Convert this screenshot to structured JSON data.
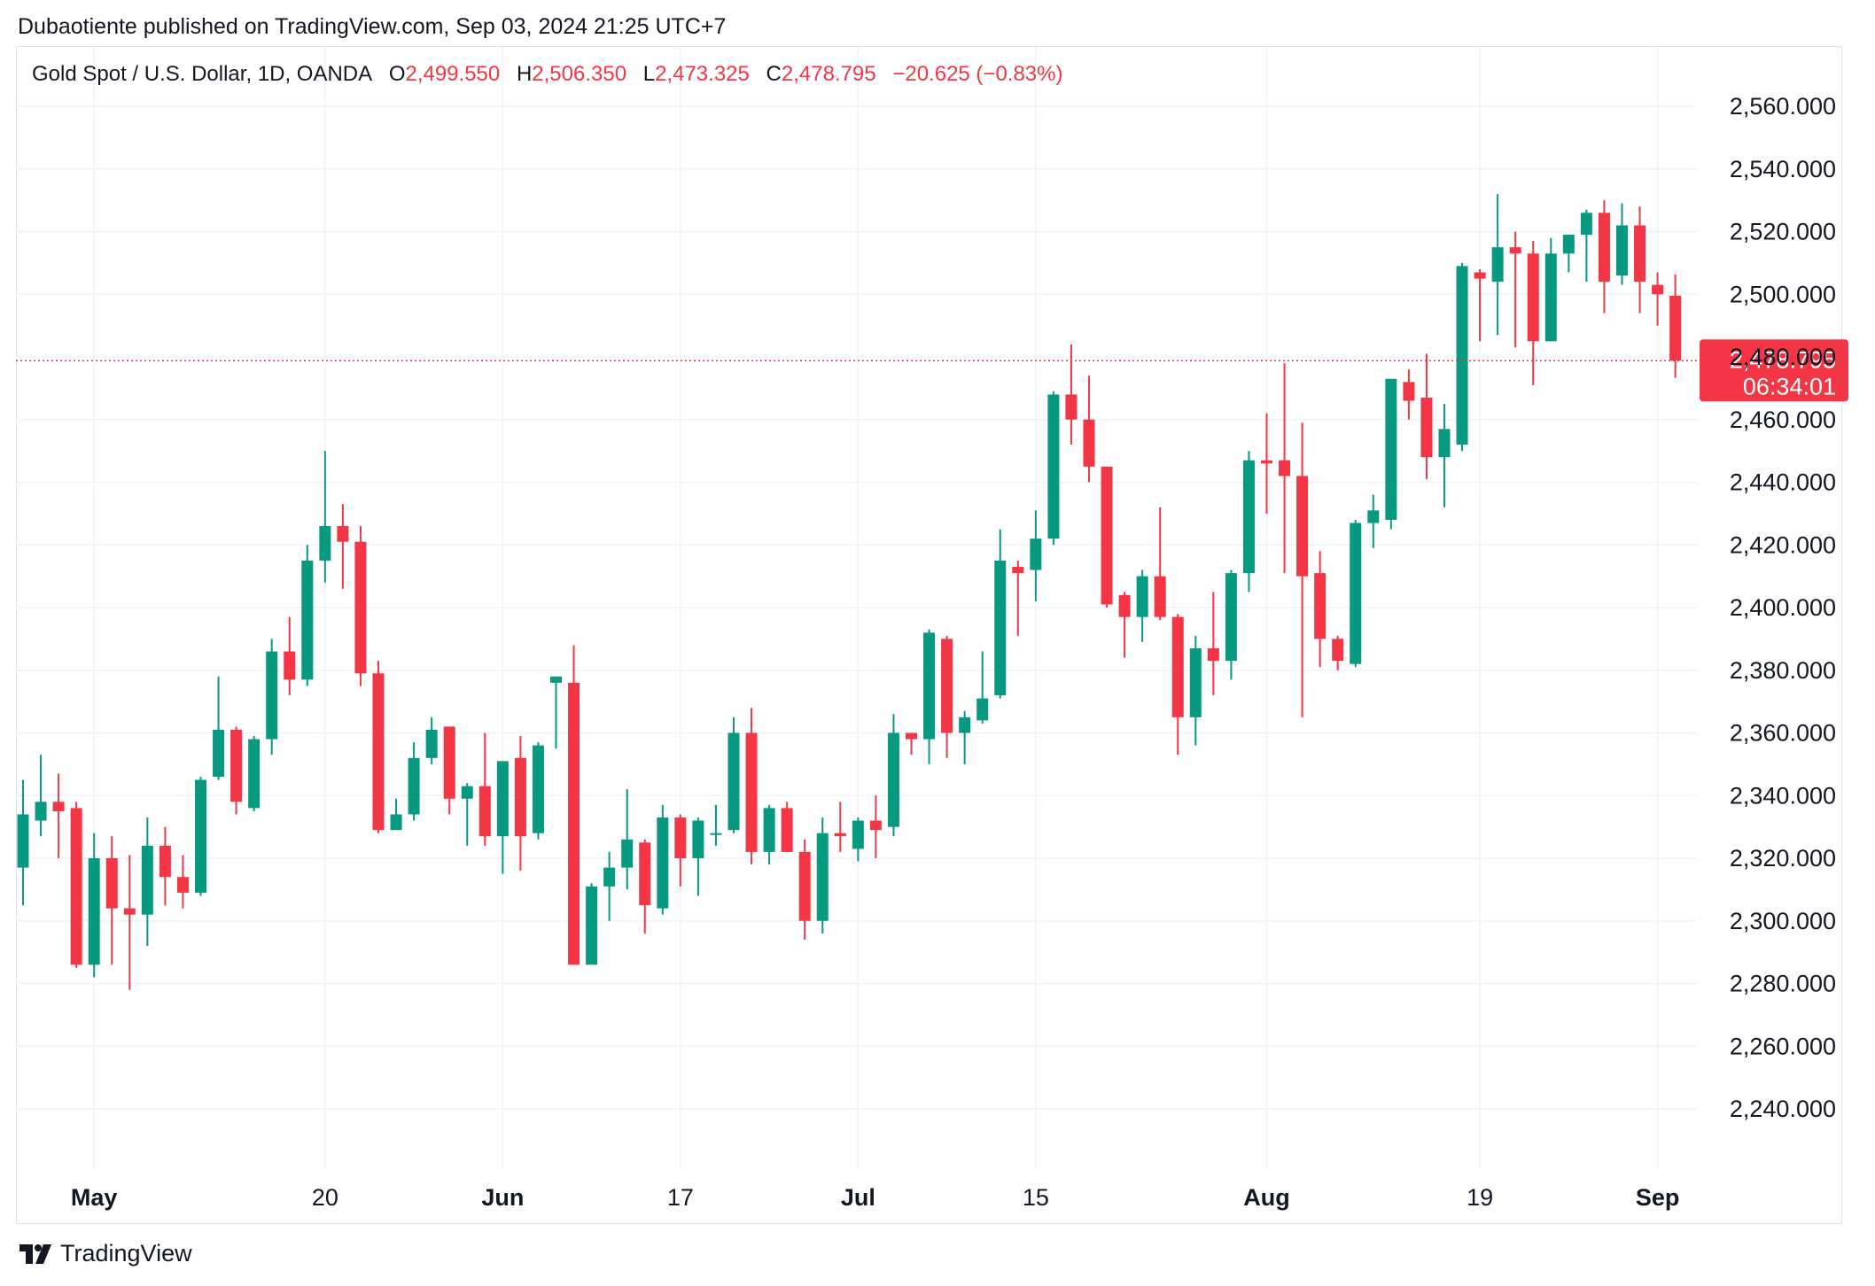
{
  "publisher_line": "Dubaotiente published on TradingView.com, Sep 03, 2024 21:25 UTC+7",
  "legend": {
    "symbol": "Gold Spot / U.S. Dollar, 1D, OANDA",
    "open_label": "O",
    "open_value": "2,499.550",
    "high_label": "H",
    "high_value": "2,506.350",
    "low_label": "L",
    "low_value": "2,473.325",
    "close_label": "C",
    "close_value": "2,478.795",
    "change": "−20.625 (−0.83%)"
  },
  "last_price": {
    "price": "2,478.795",
    "countdown": "06:34:01"
  },
  "footer": {
    "brand": "TradingView"
  },
  "colors": {
    "up": "#089981",
    "down": "#f23645",
    "grid": "#f0f3fa",
    "text": "#131722"
  },
  "icons": {
    "logo": "tradingview-logo-icon"
  },
  "chart_data": {
    "type": "candlestick",
    "y_ticks": [
      "2,560.000",
      "2,540.000",
      "2,520.000",
      "2,500.000",
      "2,480.000",
      "2,460.000",
      "2,440.000",
      "2,420.000",
      "2,400.000",
      "2,380.000",
      "2,360.000",
      "2,340.000",
      "2,320.000",
      "2,300.000",
      "2,280.000",
      "2,260.000",
      "2,240.000"
    ],
    "y_tick_values": [
      2560,
      2540,
      2520,
      2500,
      2480,
      2460,
      2440,
      2420,
      2400,
      2380,
      2360,
      2340,
      2320,
      2300,
      2280,
      2260,
      2240
    ],
    "x_ticks": [
      {
        "label": "May",
        "bold": true,
        "bar_index": 4
      },
      {
        "label": "20",
        "bold": false,
        "bar_index": 17
      },
      {
        "label": "Jun",
        "bold": true,
        "bar_index": 27
      },
      {
        "label": "17",
        "bold": false,
        "bar_index": 37
      },
      {
        "label": "Jul",
        "bold": true,
        "bar_index": 47
      },
      {
        "label": "15",
        "bold": false,
        "bar_index": 57
      },
      {
        "label": "Aug",
        "bold": true,
        "bar_index": 70
      },
      {
        "label": "19",
        "bold": false,
        "bar_index": 82
      },
      {
        "label": "Sep",
        "bold": true,
        "bar_index": 92
      }
    ],
    "ylim": [
      2227,
      2577
    ],
    "last_close": 2478.795,
    "candles": [
      {
        "o": 2317,
        "h": 2345,
        "l": 2305,
        "c": 2334
      },
      {
        "o": 2332,
        "h": 2353,
        "l": 2327,
        "c": 2338
      },
      {
        "o": 2338,
        "h": 2347,
        "l": 2320,
        "c": 2335
      },
      {
        "o": 2336,
        "h": 2338,
        "l": 2285,
        "c": 2286
      },
      {
        "o": 2286,
        "h": 2328,
        "l": 2282,
        "c": 2320
      },
      {
        "o": 2320,
        "h": 2327,
        "l": 2286,
        "c": 2304
      },
      {
        "o": 2304,
        "h": 2321,
        "l": 2278,
        "c": 2302
      },
      {
        "o": 2302,
        "h": 2333,
        "l": 2292,
        "c": 2324
      },
      {
        "o": 2324,
        "h": 2330,
        "l": 2305,
        "c": 2314
      },
      {
        "o": 2314,
        "h": 2321,
        "l": 2304,
        "c": 2309
      },
      {
        "o": 2309,
        "h": 2346,
        "l": 2308,
        "c": 2345
      },
      {
        "o": 2346,
        "h": 2378,
        "l": 2345,
        "c": 2361
      },
      {
        "o": 2361,
        "h": 2362,
        "l": 2334,
        "c": 2338
      },
      {
        "o": 2336,
        "h": 2359,
        "l": 2335,
        "c": 2358
      },
      {
        "o": 2358,
        "h": 2390,
        "l": 2353,
        "c": 2386
      },
      {
        "o": 2386,
        "h": 2397,
        "l": 2372,
        "c": 2377
      },
      {
        "o": 2377,
        "h": 2420,
        "l": 2375,
        "c": 2415
      },
      {
        "o": 2415,
        "h": 2450,
        "l": 2408,
        "c": 2426
      },
      {
        "o": 2426,
        "h": 2433,
        "l": 2406,
        "c": 2421
      },
      {
        "o": 2421,
        "h": 2426,
        "l": 2375,
        "c": 2379
      },
      {
        "o": 2379,
        "h": 2383,
        "l": 2328,
        "c": 2329
      },
      {
        "o": 2329,
        "h": 2339,
        "l": 2329,
        "c": 2334
      },
      {
        "o": 2334,
        "h": 2357,
        "l": 2332,
        "c": 2352
      },
      {
        "o": 2352,
        "h": 2365,
        "l": 2350,
        "c": 2361
      },
      {
        "o": 2362,
        "h": 2362,
        "l": 2334,
        "c": 2339
      },
      {
        "o": 2339,
        "h": 2344,
        "l": 2324,
        "c": 2343
      },
      {
        "o": 2343,
        "h": 2360,
        "l": 2324,
        "c": 2327
      },
      {
        "o": 2327,
        "h": 2350,
        "l": 2315,
        "c": 2351
      },
      {
        "o": 2352,
        "h": 2359,
        "l": 2316,
        "c": 2327
      },
      {
        "o": 2328,
        "h": 2357,
        "l": 2326,
        "c": 2356
      },
      {
        "o": 2376,
        "h": 2378,
        "l": 2355,
        "c": 2378
      },
      {
        "o": 2376,
        "h": 2388,
        "l": 2287,
        "c": 2286
      },
      {
        "o": 2286,
        "h": 2312,
        "l": 2288,
        "c": 2311
      },
      {
        "o": 2311,
        "h": 2322,
        "l": 2300,
        "c": 2317
      },
      {
        "o": 2317,
        "h": 2342,
        "l": 2310,
        "c": 2326
      },
      {
        "o": 2325,
        "h": 2326,
        "l": 2296,
        "c": 2305
      },
      {
        "o": 2304,
        "h": 2337,
        "l": 2302,
        "c": 2333
      },
      {
        "o": 2333,
        "h": 2334,
        "l": 2311,
        "c": 2320
      },
      {
        "o": 2320,
        "h": 2333,
        "l": 2308,
        "c": 2332
      },
      {
        "o": 2328,
        "h": 2337,
        "l": 2324,
        "c": 2328
      },
      {
        "o": 2329,
        "h": 2365,
        "l": 2328,
        "c": 2360
      },
      {
        "o": 2360,
        "h": 2368,
        "l": 2318,
        "c": 2322
      },
      {
        "o": 2322,
        "h": 2337,
        "l": 2318,
        "c": 2336
      },
      {
        "o": 2336,
        "h": 2338,
        "l": 2322,
        "c": 2322
      },
      {
        "o": 2322,
        "h": 2326,
        "l": 2294,
        "c": 2300
      },
      {
        "o": 2300,
        "h": 2333,
        "l": 2296,
        "c": 2328
      },
      {
        "o": 2328,
        "h": 2338,
        "l": 2322,
        "c": 2327
      },
      {
        "o": 2323,
        "h": 2333,
        "l": 2319,
        "c": 2332
      },
      {
        "o": 2332,
        "h": 2340,
        "l": 2320,
        "c": 2329
      },
      {
        "o": 2330,
        "h": 2366,
        "l": 2327,
        "c": 2360
      },
      {
        "o": 2360,
        "h": 2360,
        "l": 2353,
        "c": 2358
      },
      {
        "o": 2358,
        "h": 2393,
        "l": 2350,
        "c": 2392
      },
      {
        "o": 2390,
        "h": 2391,
        "l": 2352,
        "c": 2360
      },
      {
        "o": 2360,
        "h": 2367,
        "l": 2350,
        "c": 2365
      },
      {
        "o": 2364,
        "h": 2386,
        "l": 2363,
        "c": 2371
      },
      {
        "o": 2372,
        "h": 2425,
        "l": 2371,
        "c": 2415
      },
      {
        "o": 2413,
        "h": 2415,
        "l": 2391,
        "c": 2411
      },
      {
        "o": 2412,
        "h": 2431,
        "l": 2402,
        "c": 2422
      },
      {
        "o": 2422,
        "h": 2469,
        "l": 2420,
        "c": 2468
      },
      {
        "o": 2468,
        "h": 2484,
        "l": 2452,
        "c": 2460
      },
      {
        "o": 2460,
        "h": 2474,
        "l": 2440,
        "c": 2445
      },
      {
        "o": 2445,
        "h": 2445,
        "l": 2400,
        "c": 2401
      },
      {
        "o": 2404,
        "h": 2405,
        "l": 2384,
        "c": 2397
      },
      {
        "o": 2397,
        "h": 2412,
        "l": 2389,
        "c": 2410
      },
      {
        "o": 2410,
        "h": 2432,
        "l": 2396,
        "c": 2397
      },
      {
        "o": 2397,
        "h": 2398,
        "l": 2353,
        "c": 2365
      },
      {
        "o": 2365,
        "h": 2391,
        "l": 2356,
        "c": 2387
      },
      {
        "o": 2387,
        "h": 2405,
        "l": 2372,
        "c": 2383
      },
      {
        "o": 2383,
        "h": 2412,
        "l": 2377,
        "c": 2411
      },
      {
        "o": 2411,
        "h": 2450,
        "l": 2405,
        "c": 2447
      },
      {
        "o": 2447,
        "h": 2462,
        "l": 2430,
        "c": 2446
      },
      {
        "o": 2447,
        "h": 2478,
        "l": 2411,
        "c": 2442
      },
      {
        "o": 2442,
        "h": 2459,
        "l": 2365,
        "c": 2410
      },
      {
        "o": 2411,
        "h": 2418,
        "l": 2381,
        "c": 2390
      },
      {
        "o": 2390,
        "h": 2391,
        "l": 2380,
        "c": 2383
      },
      {
        "o": 2382,
        "h": 2428,
        "l": 2381,
        "c": 2427
      },
      {
        "o": 2427,
        "h": 2436,
        "l": 2419,
        "c": 2431
      },
      {
        "o": 2428,
        "h": 2473,
        "l": 2425,
        "c": 2473
      },
      {
        "o": 2472,
        "h": 2476,
        "l": 2460,
        "c": 2466
      },
      {
        "o": 2467,
        "h": 2481,
        "l": 2441,
        "c": 2448
      },
      {
        "o": 2448,
        "h": 2465,
        "l": 2432,
        "c": 2457
      },
      {
        "o": 2452,
        "h": 2510,
        "l": 2450,
        "c": 2509
      },
      {
        "o": 2507,
        "h": 2508,
        "l": 2485,
        "c": 2505
      },
      {
        "o": 2504,
        "h": 2532,
        "l": 2487,
        "c": 2515
      },
      {
        "o": 2515,
        "h": 2520,
        "l": 2483,
        "c": 2513
      },
      {
        "o": 2513,
        "h": 2517,
        "l": 2471,
        "c": 2485
      },
      {
        "o": 2485,
        "h": 2518,
        "l": 2485,
        "c": 2513
      },
      {
        "o": 2513,
        "h": 2519,
        "l": 2507,
        "c": 2519
      },
      {
        "o": 2519,
        "h": 2527,
        "l": 2504,
        "c": 2526
      },
      {
        "o": 2526,
        "h": 2530,
        "l": 2494,
        "c": 2504
      },
      {
        "o": 2506,
        "h": 2529,
        "l": 2503,
        "c": 2522
      },
      {
        "o": 2522,
        "h": 2528,
        "l": 2494,
        "c": 2504
      },
      {
        "o": 2503,
        "h": 2507,
        "l": 2490,
        "c": 2500
      },
      {
        "o": 2499.55,
        "h": 2506.35,
        "l": 2473.325,
        "c": 2478.795
      }
    ]
  }
}
